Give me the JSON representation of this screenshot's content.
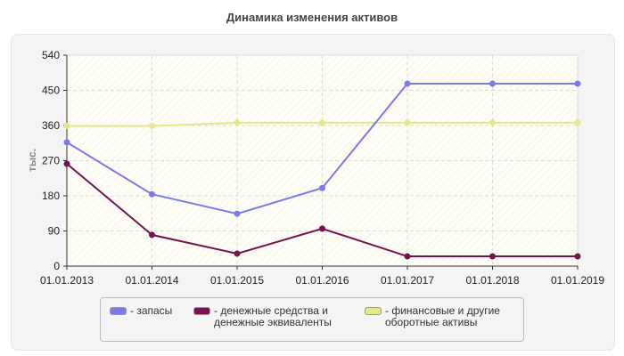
{
  "chart_data": {
    "type": "line",
    "title": "Динамика изменения активов",
    "ylabel": "тыс.",
    "xlabel": "",
    "categories": [
      "01.01.2013",
      "01.01.2014",
      "01.01.2015",
      "01.01.2016",
      "01.01.2017",
      "01.01.2018",
      "01.01.2019"
    ],
    "yticks": [
      "0",
      "90",
      "180",
      "270",
      "360",
      "450",
      "540"
    ],
    "ylim": [
      0,
      540
    ],
    "grid": true,
    "legend_position": "bottom",
    "series": [
      {
        "name": "- запасы",
        "color": "#7b7be8",
        "values": [
          317,
          184,
          134,
          200,
          467,
          467,
          467
        ]
      },
      {
        "name": "- денежные средства и денежные эквиваленты",
        "color": "#74144f",
        "values": [
          262,
          80,
          32,
          96,
          25,
          25,
          25
        ]
      },
      {
        "name": "- финансовые и другие оборотные активы",
        "color": "#e6e68a",
        "values": [
          359,
          359,
          367,
          367,
          367,
          367,
          367
        ]
      }
    ]
  }
}
